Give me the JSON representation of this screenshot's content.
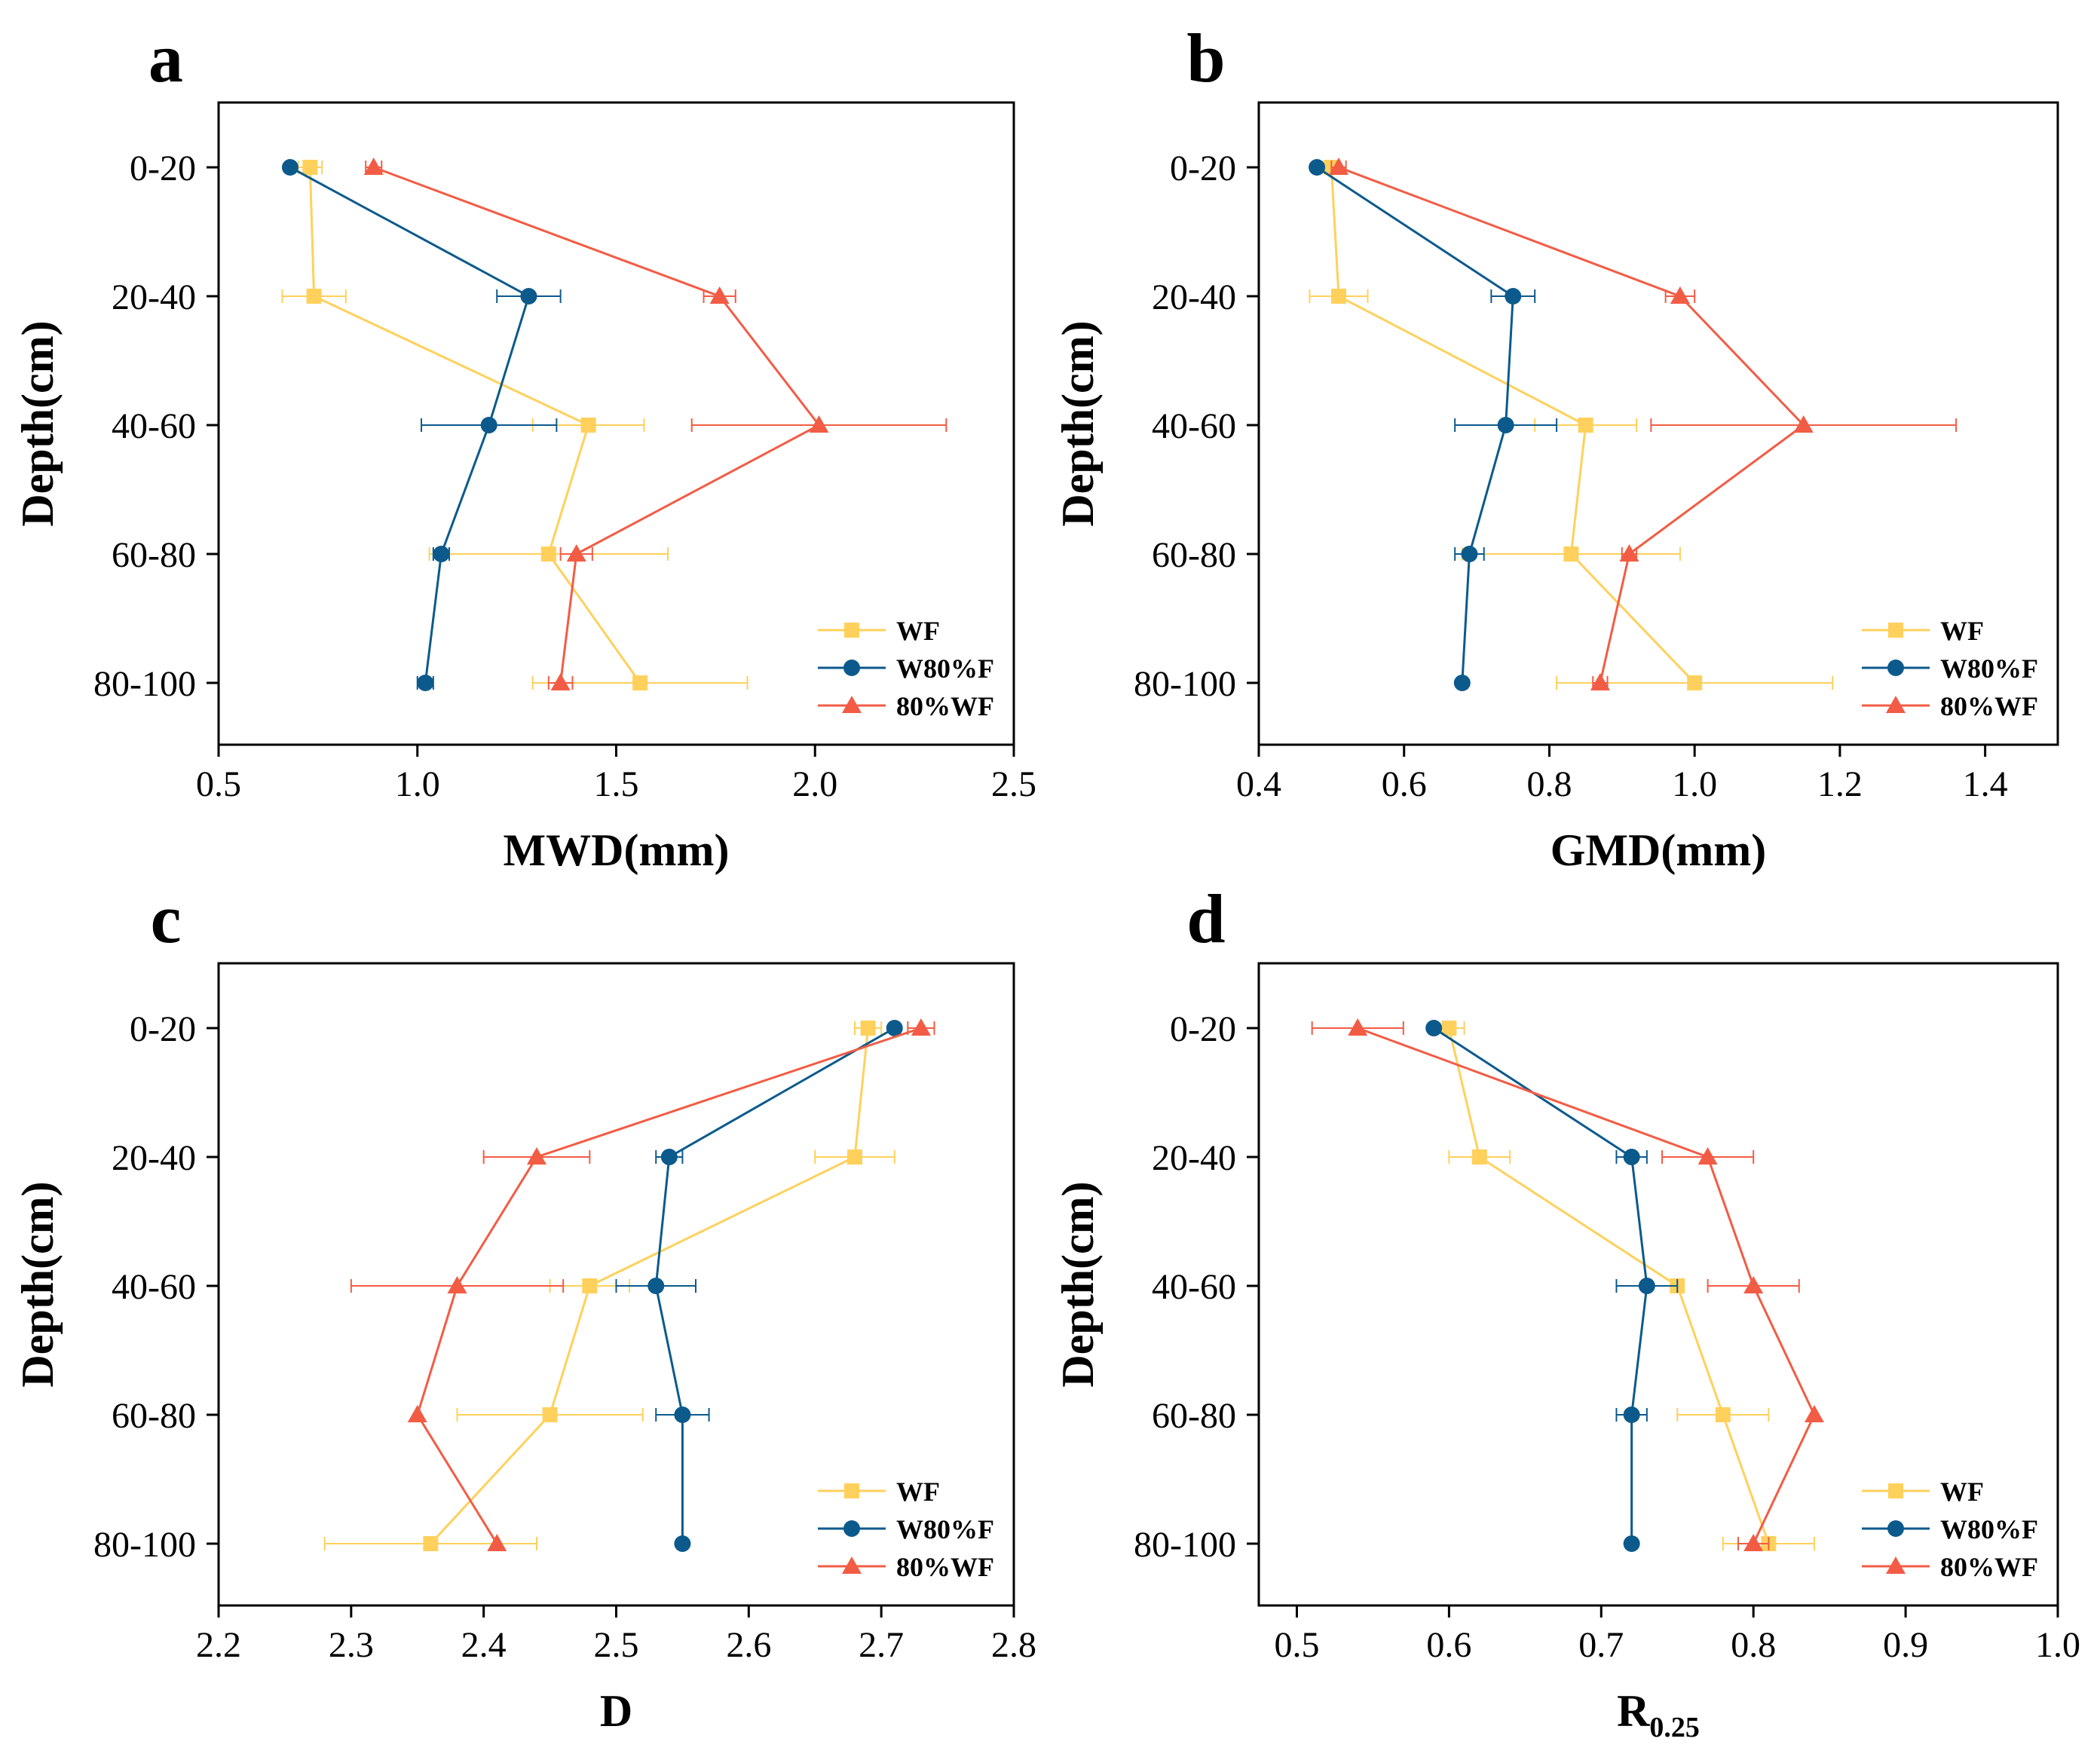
{
  "figure": {
    "colors": {
      "WF": "#FFD15C",
      "W80%F": "#0C5A8C",
      "80%WF": "#F25C45"
    }
  },
  "chart_data": [
    {
      "panel": "a",
      "type": "line",
      "xlabel": "MWD(mm)",
      "ylabel": "Depth(cm)",
      "xlim": [
        0.5,
        2.5
      ],
      "xticks": [
        "0.5",
        "1.0",
        "1.5",
        "2.0",
        "2.5"
      ],
      "categories": [
        "0-20",
        "20-40",
        "40-60",
        "60-80",
        "80-100"
      ],
      "legend": [
        "WF",
        "W80%F",
        "80%WF"
      ],
      "legend_position": "bottom-right",
      "series": [
        {
          "name": "WF",
          "marker": "square",
          "values": [
            0.73,
            0.74,
            1.43,
            1.33,
            1.56
          ],
          "errors": [
            0.03,
            0.08,
            0.14,
            0.3,
            0.27
          ]
        },
        {
          "name": "W80%F",
          "marker": "circle",
          "values": [
            0.68,
            1.28,
            1.18,
            1.06,
            1.02
          ],
          "errors": [
            0.0,
            0.08,
            0.17,
            0.02,
            0.02
          ]
        },
        {
          "name": "80%WF",
          "marker": "triangle",
          "values": [
            0.89,
            1.76,
            2.01,
            1.4,
            1.36
          ],
          "errors": [
            0.02,
            0.04,
            0.32,
            0.04,
            0.03
          ]
        }
      ]
    },
    {
      "panel": "b",
      "type": "line",
      "xlabel": "GMD(mm)",
      "ylabel": "Depth(cm)",
      "xlim": [
        0.4,
        1.5
      ],
      "xticks": [
        "0.4",
        "0.6",
        "0.8",
        "1.0",
        "1.2",
        "1.4"
      ],
      "categories": [
        "0-20",
        "20-40",
        "40-60",
        "60-80",
        "80-100"
      ],
      "legend": [
        "WF",
        "W80%F",
        "80%WF"
      ],
      "legend_position": "bottom-right",
      "series": [
        {
          "name": "WF",
          "marker": "square",
          "values": [
            0.5,
            0.51,
            0.85,
            0.83,
            1.0
          ],
          "errors": [
            0.01,
            0.04,
            0.07,
            0.15,
            0.19
          ]
        },
        {
          "name": "W80%F",
          "marker": "circle",
          "values": [
            0.48,
            0.75,
            0.74,
            0.69,
            0.68
          ],
          "errors": [
            0.0,
            0.03,
            0.07,
            0.02,
            0.0
          ]
        },
        {
          "name": "80%WF",
          "marker": "triangle",
          "values": [
            0.51,
            0.98,
            1.15,
            0.91,
            0.87
          ],
          "errors": [
            0.01,
            0.02,
            0.21,
            0.01,
            0.01
          ]
        }
      ]
    },
    {
      "panel": "c",
      "type": "line",
      "xlabel": "D",
      "ylabel": "Depth(cm)",
      "xlim": [
        2.2,
        2.8
      ],
      "xticks": [
        "2.2",
        "2.3",
        "2.4",
        "2.5",
        "2.6",
        "2.7",
        "2.8"
      ],
      "categories": [
        "0-20",
        "20-40",
        "40-60",
        "60-80",
        "80-100"
      ],
      "legend": [
        "WF",
        "W80%F",
        "80%WF"
      ],
      "legend_position": "bottom-right",
      "series": [
        {
          "name": "WF",
          "marker": "square",
          "values": [
            2.69,
            2.68,
            2.48,
            2.45,
            2.36
          ],
          "errors": [
            0.01,
            0.03,
            0.03,
            0.07,
            0.08
          ]
        },
        {
          "name": "W80%F",
          "marker": "circle",
          "values": [
            2.71,
            2.54,
            2.53,
            2.55,
            2.55
          ],
          "errors": [
            0.0,
            0.01,
            0.03,
            0.02,
            0.0
          ]
        },
        {
          "name": "80%WF",
          "marker": "triangle",
          "values": [
            2.73,
            2.44,
            2.38,
            2.35,
            2.41
          ],
          "errors": [
            0.01,
            0.04,
            0.08,
            0.0,
            0.0
          ]
        }
      ]
    },
    {
      "panel": "d",
      "type": "line",
      "xlabel": "R",
      "xlabel_subscript": "0.25",
      "ylabel": "Depth(cm)",
      "xlim": [
        0.475,
        1.0
      ],
      "xticks": [
        "0.5",
        "0.6",
        "0.7",
        "0.8",
        "0.9",
        "1.0"
      ],
      "categories": [
        "0-20",
        "20-40",
        "40-60",
        "60-80",
        "80-100"
      ],
      "legend": [
        "WF",
        "W80%F",
        "80%WF"
      ],
      "legend_position": "bottom-right",
      "series": [
        {
          "name": "WF",
          "marker": "square",
          "values": [
            0.6,
            0.62,
            0.75,
            0.78,
            0.81
          ],
          "errors": [
            0.01,
            0.02,
            0.0,
            0.03,
            0.03
          ]
        },
        {
          "name": "W80%F",
          "marker": "circle",
          "values": [
            0.59,
            0.72,
            0.73,
            0.72,
            0.72
          ],
          "errors": [
            0.0,
            0.01,
            0.02,
            0.01,
            0.0
          ]
        },
        {
          "name": "80%WF",
          "marker": "triangle",
          "values": [
            0.54,
            0.77,
            0.8,
            0.84,
            0.8
          ],
          "errors": [
            0.03,
            0.03,
            0.03,
            0.0,
            0.01
          ]
        }
      ]
    }
  ]
}
